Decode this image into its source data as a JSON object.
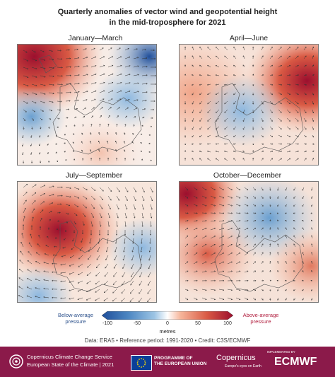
{
  "title": {
    "line1": "Quarterly anomalies of vector wind and geopotential height",
    "line2": "in the mid-troposphere for 2021"
  },
  "panels": [
    {
      "label": "January—March",
      "anomaly": "strong positive over Greenland/north-west, negative to the south-west and east"
    },
    {
      "label": "April—June",
      "anomaly": "strong positive over north-east Russia"
    },
    {
      "label": "July—September",
      "anomaly": "strong positive west of the British Isles over the Atlantic"
    },
    {
      "label": "October—December",
      "anomaly": "positive over the Atlantic and east, negative over Scandinavia"
    }
  ],
  "legend": {
    "below_label": "Below-average pressure",
    "above_label": "Above-average pressure",
    "ticks": [
      "-100",
      "-50",
      "0",
      "50",
      "100"
    ],
    "units": "metres",
    "colors": [
      "#1f4e9a",
      "#4c86c2",
      "#9cc4e4",
      "#ffffff",
      "#f6b59a",
      "#d95a44",
      "#9c0f2e"
    ]
  },
  "credit": "Data: ERA5  •  Reference period: 1991-2020  •  Credit: C3S/ECMWF",
  "footer": {
    "line1": "Copernicus Climate Change Service",
    "line2": "European State of the Climate | 2021",
    "eu_text_1": "PROGRAMME OF",
    "eu_text_2": "THE EUROPEAN UNION",
    "copernicus": "Copernicus",
    "copernicus_tagline": "Europe's eyes on Earth",
    "implemented_by": "IMPLEMENTED BY",
    "ecmwf": "ECMWF"
  }
}
